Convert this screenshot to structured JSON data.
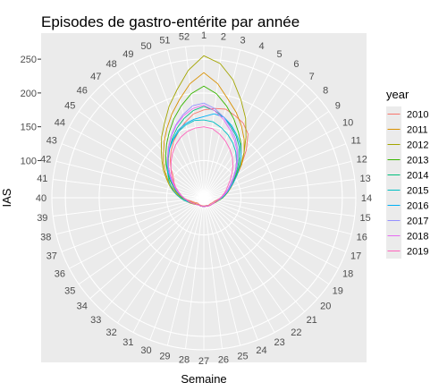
{
  "chart_data": {
    "type": "line",
    "coord": "polar",
    "title": "Episodes de gastro-entérite par année",
    "xlabel": "Semaine",
    "ylabel": "IAS",
    "theta_ticks": [
      "1",
      "2",
      "3",
      "4",
      "5",
      "6",
      "7",
      "8",
      "9",
      "10",
      "11",
      "12",
      "13",
      "14",
      "15",
      "16",
      "17",
      "18",
      "19",
      "20",
      "21",
      "22",
      "23",
      "24",
      "25",
      "26",
      "27",
      "28",
      "29",
      "30",
      "31",
      "32",
      "33",
      "34",
      "35",
      "36",
      "37",
      "38",
      "39",
      "40",
      "41",
      "42",
      "43",
      "44",
      "45",
      "46",
      "47",
      "48",
      "49",
      "50",
      "51",
      "52"
    ],
    "r_ticks": [
      100,
      150,
      200,
      250
    ],
    "r_range": [
      45,
      270
    ],
    "legend": {
      "title": "year",
      "position": "right",
      "items": [
        {
          "label": "2010",
          "color": "#F8766D"
        },
        {
          "label": "2011",
          "color": "#D89000"
        },
        {
          "label": "2012",
          "color": "#A3A500"
        },
        {
          "label": "2013",
          "color": "#39B600"
        },
        {
          "label": "2014",
          "color": "#00BF7D"
        },
        {
          "label": "2015",
          "color": "#00BFC4"
        },
        {
          "label": "2016",
          "color": "#00B0F6"
        },
        {
          "label": "2017",
          "color": "#9590FF"
        },
        {
          "label": "2018",
          "color": "#E76BF3"
        },
        {
          "label": "2019",
          "color": "#FF62BC"
        }
      ]
    },
    "series": [
      {
        "name": "2010",
        "values": [
          175,
          178,
          180,
          175,
          170,
          160,
          140,
          120,
          105,
          92,
          85,
          80,
          75,
          70,
          66,
          63,
          61,
          60,
          59,
          58,
          58,
          58,
          58,
          57,
          57,
          57,
          57,
          57,
          57,
          57,
          57,
          57,
          57,
          57,
          58,
          60,
          62,
          65,
          70,
          75,
          80,
          85,
          90,
          95,
          100,
          110,
          120,
          130,
          140,
          150,
          160,
          170
        ]
      },
      {
        "name": "2011",
        "values": [
          230,
          215,
          195,
          180,
          165,
          150,
          135,
          120,
          105,
          95,
          88,
          82,
          77,
          72,
          68,
          65,
          63,
          62,
          61,
          60,
          60,
          59,
          59,
          58,
          58,
          58,
          58,
          58,
          58,
          58,
          58,
          58,
          58,
          59,
          60,
          62,
          64,
          67,
          72,
          78,
          84,
          90,
          98,
          106,
          115,
          125,
          135,
          148,
          162,
          178,
          195,
          215
        ]
      },
      {
        "name": "2012",
        "values": [
          255,
          245,
          225,
          200,
          178,
          155,
          135,
          118,
          103,
          92,
          85,
          80,
          75,
          71,
          68,
          65,
          63,
          62,
          61,
          60,
          60,
          59,
          59,
          58,
          58,
          58,
          58,
          58,
          58,
          58,
          58,
          58,
          59,
          60,
          62,
          64,
          67,
          70,
          75,
          80,
          86,
          93,
          100,
          108,
          118,
          128,
          140,
          155,
          170,
          190,
          210,
          235
        ]
      },
      {
        "name": "2013",
        "values": [
          210,
          200,
          185,
          170,
          155,
          142,
          128,
          115,
          103,
          94,
          87,
          82,
          77,
          73,
          69,
          66,
          64,
          62,
          61,
          60,
          60,
          59,
          59,
          58,
          58,
          58,
          58,
          58,
          58,
          58,
          58,
          58,
          59,
          60,
          61,
          63,
          65,
          68,
          72,
          77,
          82,
          88,
          94,
          102,
          110,
          120,
          130,
          142,
          155,
          170,
          185,
          200
        ]
      },
      {
        "name": "2014",
        "values": [
          180,
          175,
          168,
          158,
          148,
          137,
          124,
          112,
          101,
          92,
          85,
          80,
          75,
          71,
          68,
          65,
          63,
          62,
          61,
          60,
          60,
          59,
          59,
          58,
          58,
          58,
          58,
          58,
          58,
          58,
          58,
          58,
          59,
          60,
          61,
          63,
          65,
          68,
          71,
          75,
          80,
          85,
          92,
          98,
          106,
          115,
          124,
          134,
          145,
          156,
          166,
          175
        ]
      },
      {
        "name": "2015",
        "values": [
          160,
          158,
          152,
          145,
          137,
          128,
          118,
          108,
          98,
          90,
          84,
          79,
          74,
          70,
          67,
          65,
          63,
          62,
          61,
          60,
          60,
          59,
          59,
          58,
          58,
          58,
          58,
          58,
          58,
          58,
          58,
          58,
          59,
          60,
          61,
          63,
          66,
          70,
          75,
          80,
          86,
          92,
          98,
          104,
          110,
          118,
          126,
          134,
          142,
          150,
          156,
          160
        ]
      },
      {
        "name": "2016",
        "values": [
          165,
          170,
          168,
          160,
          150,
          140,
          128,
          116,
          105,
          95,
          87,
          81,
          76,
          72,
          68,
          65,
          63,
          62,
          61,
          60,
          60,
          59,
          59,
          58,
          58,
          58,
          58,
          58,
          58,
          58,
          58,
          58,
          59,
          60,
          61,
          63,
          65,
          68,
          72,
          76,
          81,
          87,
          93,
          100,
          108,
          116,
          125,
          134,
          143,
          152,
          158,
          162
        ]
      },
      {
        "name": "2017",
        "values": [
          185,
          178,
          168,
          156,
          145,
          133,
          121,
          110,
          100,
          92,
          85,
          80,
          75,
          71,
          68,
          65,
          63,
          62,
          61,
          60,
          60,
          59,
          59,
          58,
          58,
          58,
          58,
          58,
          58,
          58,
          58,
          58,
          59,
          60,
          61,
          63,
          65,
          68,
          71,
          75,
          80,
          86,
          92,
          99,
          107,
          116,
          126,
          137,
          149,
          161,
          172,
          182
        ]
      },
      {
        "name": "2018",
        "values": [
          182,
          175,
          165,
          153,
          142,
          131,
          119,
          108,
          98,
          90,
          84,
          79,
          74,
          70,
          67,
          65,
          63,
          62,
          61,
          60,
          60,
          59,
          59,
          58,
          58,
          58,
          58,
          58,
          58,
          58,
          58,
          58,
          59,
          60,
          61,
          63,
          65,
          68,
          71,
          75,
          80,
          85,
          91,
          98,
          106,
          115,
          125,
          136,
          148,
          160,
          170,
          178
        ]
      },
      {
        "name": "2019",
        "values": [
          150,
          148,
          142,
          135,
          127,
          119,
          110,
          101,
          93,
          86,
          81,
          77,
          73,
          70,
          67,
          65,
          63,
          62,
          61,
          60,
          60,
          59,
          59,
          58,
          58,
          58,
          58,
          58,
          58,
          58,
          58,
          58,
          59,
          60,
          61,
          63,
          65,
          68,
          71,
          75,
          79,
          84,
          90,
          96,
          103,
          110,
          118,
          126,
          134,
          141,
          146,
          149
        ]
      }
    ]
  }
}
